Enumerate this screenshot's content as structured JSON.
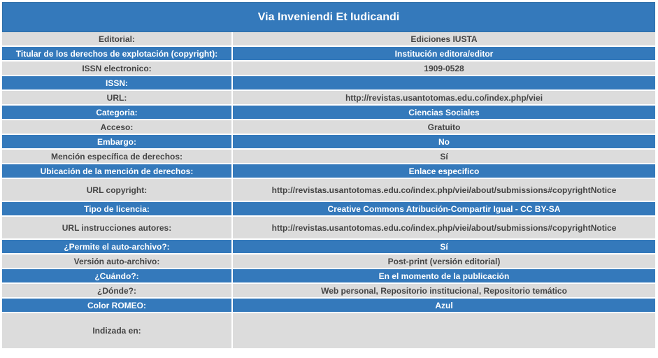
{
  "title": "Via Inveniendi Et Iudicandi",
  "rows": [
    {
      "label": "Editorial:",
      "value": "Ediciones IUSTA"
    },
    {
      "label": "Titular de los derechos de explotación (copyright):",
      "value": "Institución editora/editor"
    },
    {
      "label": "ISSN electronico:",
      "value": "1909-0528"
    },
    {
      "label": "ISSN:",
      "value": ""
    },
    {
      "label": "URL:",
      "value": "http://revistas.usantotomas.edu.co/index.php/viei"
    },
    {
      "label": "Categoria:",
      "value": "Ciencias Sociales"
    },
    {
      "label": "Acceso:",
      "value": "Gratuito"
    },
    {
      "label": "Embargo:",
      "value": "No"
    },
    {
      "label": "Mención específica de derechos:",
      "value": "Sí"
    },
    {
      "label": "Ubicación de la mención de derechos:",
      "value": "Enlace especifico"
    },
    {
      "label": "URL copyright:",
      "value": "http://revistas.usantotomas.edu.co/index.php/viei/about/submissions#copyrightNotice"
    },
    {
      "label": "Tipo de licencia:",
      "value": "Creative Commons Atribución-Compartir Igual - CC BY-SA"
    },
    {
      "label": "URL instrucciones autores:",
      "value": "http://revistas.usantotomas.edu.co/index.php/viei/about/submissions#copyrightNotice"
    },
    {
      "label": "¿Permite el auto-archivo?:",
      "value": "Sí"
    },
    {
      "label": "Versión auto-archivo:",
      "value": "Post-print (versión editorial)"
    },
    {
      "label": "¿Cuándo?:",
      "value": "En el momento de la publicación"
    },
    {
      "label": "¿Dónde?:",
      "value": "Web personal, Repositorio institucional, Repositorio temático"
    },
    {
      "label": "Color ROMEO:",
      "value": "Azul"
    },
    {
      "label": "Indizada en:",
      "value": ""
    }
  ],
  "colors": {
    "header_blue": "#3479bb",
    "row_gray": "#dcdcdc"
  }
}
